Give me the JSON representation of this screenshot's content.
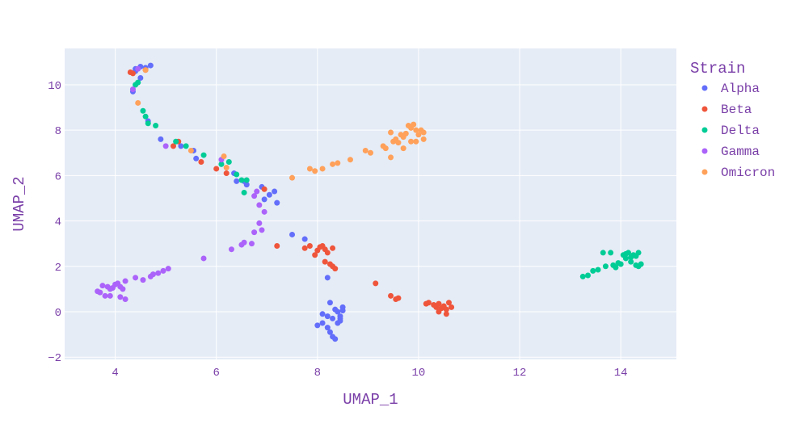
{
  "chart_data": {
    "type": "scatter",
    "xlabel": "UMAP_1",
    "ylabel": "UMAP_2",
    "xlim": [
      3.0,
      15.1
    ],
    "ylim": [
      -2.1,
      11.6
    ],
    "xticks": [
      4,
      6,
      8,
      10,
      12,
      14
    ],
    "yticks": [
      -2,
      0,
      2,
      4,
      6,
      8,
      10
    ],
    "xtick_labels": [
      "4",
      "6",
      "8",
      "10",
      "12",
      "14"
    ],
    "ytick_labels": [
      "−2",
      "0",
      "2",
      "4",
      "6",
      "8",
      "10"
    ],
    "grid": true,
    "legend": {
      "title": "Strain",
      "placement": "right"
    },
    "colors": {
      "text": "#7a3fa8",
      "plot_bg": "#e5ecf6",
      "grid": "#ffffff"
    },
    "series": [
      {
        "name": "Alpha",
        "color": "#636efa",
        "points": [
          [
            4.4,
            10.7
          ],
          [
            4.5,
            10.8
          ],
          [
            4.6,
            10.75
          ],
          [
            4.7,
            10.85
          ],
          [
            4.5,
            10.3
          ],
          [
            4.4,
            10.6
          ],
          [
            4.35,
            9.7
          ],
          [
            4.65,
            8.4
          ],
          [
            4.9,
            7.6
          ],
          [
            5.3,
            7.3
          ],
          [
            5.55,
            7.1
          ],
          [
            5.6,
            6.75
          ],
          [
            6.35,
            6.1
          ],
          [
            6.4,
            5.75
          ],
          [
            6.55,
            5.75
          ],
          [
            6.6,
            5.6
          ],
          [
            6.9,
            5.5
          ],
          [
            6.95,
            4.95
          ],
          [
            7.05,
            5.15
          ],
          [
            7.15,
            5.3
          ],
          [
            7.2,
            4.8
          ],
          [
            7.5,
            3.4
          ],
          [
            7.75,
            3.2
          ],
          [
            8.2,
            1.5
          ],
          [
            8.25,
            0.4
          ],
          [
            8.1,
            -0.1
          ],
          [
            8.0,
            -0.6
          ],
          [
            8.1,
            -0.5
          ],
          [
            8.2,
            -0.2
          ],
          [
            8.25,
            -0.9
          ],
          [
            8.3,
            -1.1
          ],
          [
            8.35,
            -1.2
          ],
          [
            8.4,
            -0.5
          ],
          [
            8.35,
            0.1
          ],
          [
            8.45,
            -0.2
          ],
          [
            8.5,
            0.2
          ],
          [
            8.45,
            -0.4
          ],
          [
            8.5,
            0.05
          ],
          [
            8.3,
            -0.3
          ],
          [
            8.4,
            0.0
          ],
          [
            8.2,
            -0.7
          ],
          [
            8.45,
            -0.3
          ]
        ]
      },
      {
        "name": "Beta",
        "color": "#ef553b",
        "points": [
          [
            4.3,
            10.55
          ],
          [
            4.35,
            10.5
          ],
          [
            4.6,
            10.65
          ],
          [
            5.15,
            7.3
          ],
          [
            5.25,
            7.5
          ],
          [
            5.7,
            6.6
          ],
          [
            6.0,
            6.3
          ],
          [
            6.2,
            6.1
          ],
          [
            6.95,
            5.4
          ],
          [
            7.2,
            2.9
          ],
          [
            7.75,
            2.8
          ],
          [
            7.85,
            2.9
          ],
          [
            7.95,
            2.5
          ],
          [
            8.0,
            2.7
          ],
          [
            8.05,
            2.85
          ],
          [
            8.1,
            2.9
          ],
          [
            8.15,
            2.75
          ],
          [
            8.2,
            2.6
          ],
          [
            8.3,
            2.8
          ],
          [
            8.15,
            2.2
          ],
          [
            8.25,
            2.1
          ],
          [
            8.3,
            2.0
          ],
          [
            8.35,
            1.9
          ],
          [
            9.15,
            1.25
          ],
          [
            9.45,
            0.7
          ],
          [
            9.55,
            0.55
          ],
          [
            9.6,
            0.6
          ],
          [
            10.15,
            0.35
          ],
          [
            10.2,
            0.4
          ],
          [
            10.3,
            0.3
          ],
          [
            10.35,
            0.2
          ],
          [
            10.4,
            0.35
          ],
          [
            10.45,
            0.15
          ],
          [
            10.5,
            0.25
          ],
          [
            10.55,
            0.1
          ],
          [
            10.6,
            0.4
          ],
          [
            10.65,
            0.2
          ],
          [
            10.55,
            -0.1
          ],
          [
            10.4,
            0.0
          ]
        ]
      },
      {
        "name": "Delta",
        "color": "#00cc96",
        "points": [
          [
            4.4,
            10.0
          ],
          [
            4.45,
            10.1
          ],
          [
            4.55,
            8.85
          ],
          [
            4.6,
            8.6
          ],
          [
            4.65,
            8.3
          ],
          [
            4.8,
            8.2
          ],
          [
            5.2,
            7.5
          ],
          [
            5.4,
            7.3
          ],
          [
            5.75,
            6.9
          ],
          [
            6.1,
            6.5
          ],
          [
            6.25,
            6.6
          ],
          [
            6.4,
            6.05
          ],
          [
            6.5,
            5.8
          ],
          [
            6.6,
            5.8
          ],
          [
            6.55,
            5.25
          ],
          [
            13.25,
            1.55
          ],
          [
            13.35,
            1.6
          ],
          [
            13.45,
            1.8
          ],
          [
            13.55,
            1.85
          ],
          [
            13.65,
            2.6
          ],
          [
            13.8,
            2.6
          ],
          [
            13.7,
            2.0
          ],
          [
            13.85,
            2.05
          ],
          [
            13.95,
            2.15
          ],
          [
            13.9,
            1.95
          ],
          [
            14.0,
            2.1
          ],
          [
            14.05,
            2.5
          ],
          [
            14.1,
            2.35
          ],
          [
            14.15,
            2.6
          ],
          [
            14.2,
            2.4
          ],
          [
            14.25,
            2.5
          ],
          [
            14.3,
            2.45
          ],
          [
            14.35,
            2.0
          ],
          [
            14.35,
            2.6
          ],
          [
            14.4,
            2.1
          ],
          [
            14.3,
            2.05
          ],
          [
            14.2,
            2.2
          ],
          [
            14.1,
            2.55
          ]
        ]
      },
      {
        "name": "Gamma",
        "color": "#ab63fa",
        "points": [
          [
            4.45,
            10.7
          ],
          [
            4.35,
            9.8
          ],
          [
            5.0,
            7.3
          ],
          [
            6.1,
            6.7
          ],
          [
            6.8,
            5.3
          ],
          [
            6.75,
            5.1
          ],
          [
            6.85,
            4.7
          ],
          [
            6.95,
            4.4
          ],
          [
            6.85,
            3.9
          ],
          [
            6.9,
            3.6
          ],
          [
            6.75,
            3.5
          ],
          [
            6.7,
            3.0
          ],
          [
            6.55,
            3.05
          ],
          [
            6.5,
            2.95
          ],
          [
            6.3,
            2.75
          ],
          [
            5.75,
            2.35
          ],
          [
            5.05,
            1.9
          ],
          [
            4.95,
            1.8
          ],
          [
            4.85,
            1.7
          ],
          [
            4.75,
            1.65
          ],
          [
            4.7,
            1.55
          ],
          [
            4.55,
            1.4
          ],
          [
            4.4,
            1.5
          ],
          [
            4.2,
            1.35
          ],
          [
            4.1,
            1.1
          ],
          [
            4.15,
            1.0
          ],
          [
            4.0,
            1.2
          ],
          [
            3.95,
            1.05
          ],
          [
            3.9,
            1.0
          ],
          [
            3.85,
            1.1
          ],
          [
            3.75,
            1.15
          ],
          [
            3.7,
            0.85
          ],
          [
            3.65,
            0.9
          ],
          [
            3.8,
            0.7
          ],
          [
            3.9,
            0.7
          ],
          [
            4.1,
            0.65
          ],
          [
            4.2,
            0.55
          ],
          [
            4.05,
            1.25
          ]
        ]
      },
      {
        "name": "Omicron",
        "color": "#ffa15a",
        "points": [
          [
            4.45,
            9.2
          ],
          [
            4.6,
            10.65
          ],
          [
            5.5,
            7.1
          ],
          [
            6.15,
            6.85
          ],
          [
            6.2,
            6.35
          ],
          [
            7.5,
            5.9
          ],
          [
            7.85,
            6.3
          ],
          [
            7.95,
            6.2
          ],
          [
            8.1,
            6.3
          ],
          [
            8.3,
            6.5
          ],
          [
            8.4,
            6.55
          ],
          [
            8.65,
            6.7
          ],
          [
            8.95,
            7.1
          ],
          [
            9.05,
            7.0
          ],
          [
            9.3,
            7.3
          ],
          [
            9.35,
            7.2
          ],
          [
            9.45,
            6.8
          ],
          [
            9.5,
            7.5
          ],
          [
            9.55,
            7.6
          ],
          [
            9.6,
            7.45
          ],
          [
            9.65,
            7.8
          ],
          [
            9.7,
            7.7
          ],
          [
            9.75,
            7.85
          ],
          [
            9.8,
            8.2
          ],
          [
            9.85,
            8.1
          ],
          [
            9.9,
            8.25
          ],
          [
            9.95,
            8.0
          ],
          [
            10.0,
            7.8
          ],
          [
            10.05,
            8.0
          ],
          [
            10.1,
            7.9
          ],
          [
            9.85,
            7.5
          ],
          [
            9.7,
            7.2
          ],
          [
            9.45,
            7.9
          ],
          [
            10.1,
            7.6
          ],
          [
            9.95,
            7.5
          ]
        ]
      }
    ]
  }
}
